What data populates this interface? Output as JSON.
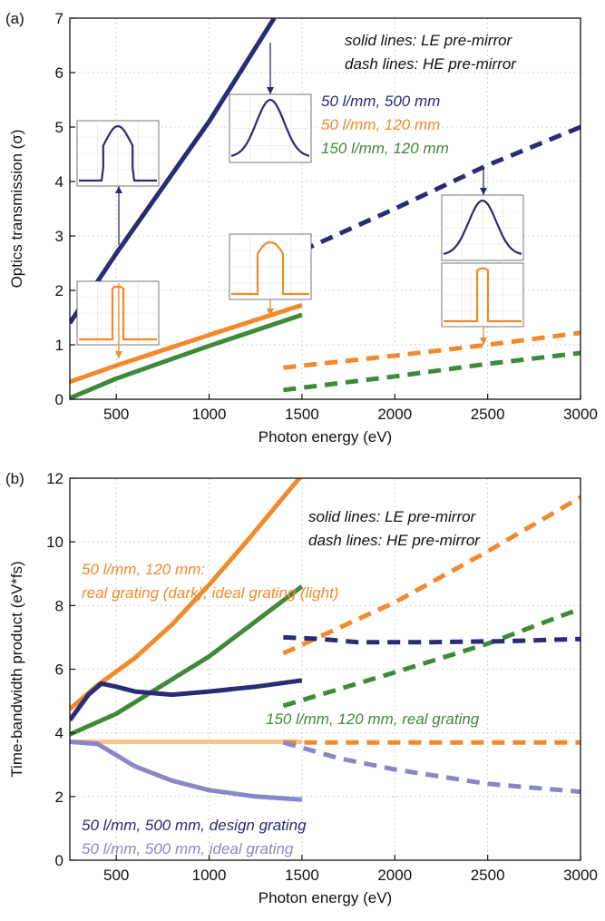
{
  "chart_data": [
    {
      "panel": "(a)",
      "type": "line",
      "xlabel": "Photon energy (eV)",
      "ylabel": "Optics transmission (σ)",
      "xlim": [
        250,
        3000
      ],
      "ylim": [
        0,
        7
      ],
      "xticks": [
        500,
        1000,
        1500,
        2000,
        2500,
        3000
      ],
      "yticks": [
        0,
        1,
        2,
        3,
        4,
        5,
        6,
        7
      ],
      "grid": true,
      "annotations": {
        "style_line1": "solid lines: LE pre-mirror",
        "style_line2": "dash lines: HE pre-mirror",
        "label_dark": "50 l/mm, 500 mm",
        "label_orange": "50 l/mm, 120 mm",
        "label_green": "150 l/mm, 120 mm"
      },
      "colors": {
        "dark": "#2b2a75",
        "orange": "#f08a2c",
        "green": "#3f8a3a"
      },
      "series": [
        {
          "style": "solid",
          "color": "dark",
          "points": [
            [
              250,
              1.4
            ],
            [
              500,
              2.68
            ],
            [
              1000,
              5.1
            ],
            [
              1350,
              7.0
            ]
          ]
        },
        {
          "style": "dashed",
          "color": "dark",
          "points": [
            [
              1500,
              2.73
            ],
            [
              2000,
              3.5
            ],
            [
              2500,
              4.3
            ],
            [
              3000,
              5.0
            ]
          ]
        },
        {
          "style": "solid",
          "color": "orange",
          "points": [
            [
              250,
              0.32
            ],
            [
              500,
              0.62
            ],
            [
              1000,
              1.18
            ],
            [
              1500,
              1.73
            ]
          ]
        },
        {
          "style": "dashed",
          "color": "orange",
          "points": [
            [
              1400,
              0.58
            ],
            [
              2000,
              0.8
            ],
            [
              2500,
              1.0
            ],
            [
              3000,
              1.22
            ]
          ]
        },
        {
          "style": "solid",
          "color": "green",
          "points": [
            [
              250,
              0.02
            ],
            [
              500,
              0.38
            ],
            [
              1000,
              0.98
            ],
            [
              1500,
              1.55
            ]
          ]
        },
        {
          "style": "dashed",
          "color": "green",
          "points": [
            [
              1400,
              0.17
            ],
            [
              2000,
              0.42
            ],
            [
              2500,
              0.65
            ],
            [
              3000,
              0.85
            ]
          ]
        }
      ],
      "insets": [
        {
          "shape": "flat-top",
          "color": "dark",
          "frame": [
            85,
            133,
            90,
            72
          ],
          "arrow": [
            131,
            270,
            131,
            205
          ]
        },
        {
          "shape": "narrow-rect",
          "color": "orange",
          "frame": [
            85,
            310,
            90,
            70
          ],
          "arrow": [
            131,
            312,
            131,
            395
          ]
        },
        {
          "shape": "gaussian",
          "color": "dark",
          "frame": [
            253,
            104,
            90,
            75
          ],
          "arrow": [
            298,
            47,
            298,
            104
          ]
        },
        {
          "shape": "rect-peak",
          "color": "orange",
          "frame": [
            253,
            258,
            90,
            72
          ],
          "arrow": [
            298,
            330,
            298,
            348
          ]
        },
        {
          "shape": "gaussian",
          "color": "dark",
          "frame": [
            487,
            215,
            90,
            72
          ],
          "arrow": [
            533,
            185,
            533,
            215
          ]
        },
        {
          "shape": "narrow-rect",
          "color": "orange",
          "frame": [
            487,
            290,
            90,
            70
          ],
          "arrow": [
            533,
            360,
            533,
            380
          ]
        }
      ]
    },
    {
      "panel": "(b)",
      "type": "line",
      "xlabel": "Photon energy (eV)",
      "ylabel": "Time-bandwidth product (eV*fs)",
      "xlim": [
        250,
        3000
      ],
      "ylim": [
        0,
        12
      ],
      "xticks": [
        500,
        1000,
        1500,
        2000,
        2500,
        3000
      ],
      "yticks": [
        0,
        2,
        4,
        6,
        8,
        10,
        12
      ],
      "grid": true,
      "annotations": {
        "style_line1": "solid lines: LE pre-mirror",
        "style_line2": "dash lines: HE pre-mirror",
        "orange_line1": "50 l/mm, 120 mm:",
        "orange_line2": "real grating (dark), ideal grating (light)",
        "green_label": "150 l/mm, 120 mm, real grating",
        "dark_label": "50 l/mm, 500 mm, design grating",
        "light_label": "50 l/mm, 500 mm, ideal grating"
      },
      "colors": {
        "dark": "#2b2a75",
        "orange": "#f08a2c",
        "lightorange": "#f8c48c",
        "green": "#3f8a3a",
        "lightpurple": "#8a87c8"
      },
      "series": [
        {
          "style": "solid",
          "color": "orange",
          "points": [
            [
              250,
              4.75
            ],
            [
              400,
              5.5
            ],
            [
              600,
              6.35
            ],
            [
              800,
              7.4
            ],
            [
              1000,
              8.65
            ],
            [
              1200,
              10.0
            ],
            [
              1400,
              11.4
            ],
            [
              1500,
              12.1
            ]
          ]
        },
        {
          "style": "dashed",
          "color": "orange",
          "points": [
            [
              1400,
              6.5
            ],
            [
              2000,
              8.1
            ],
            [
              2500,
              9.7
            ],
            [
              3000,
              11.4
            ]
          ]
        },
        {
          "style": "solid",
          "color": "green",
          "points": [
            [
              250,
              3.95
            ],
            [
              500,
              4.6
            ],
            [
              750,
              5.5
            ],
            [
              1000,
              6.4
            ],
            [
              1250,
              7.5
            ],
            [
              1500,
              8.6
            ]
          ]
        },
        {
          "style": "dashed",
          "color": "green",
          "points": [
            [
              1400,
              4.85
            ],
            [
              2000,
              5.9
            ],
            [
              2500,
              6.8
            ],
            [
              3000,
              7.9
            ]
          ]
        },
        {
          "style": "solid",
          "color": "dark",
          "points": [
            [
              250,
              4.4
            ],
            [
              350,
              5.2
            ],
            [
              420,
              5.55
            ],
            [
              500,
              5.45
            ],
            [
              600,
              5.3
            ],
            [
              800,
              5.2
            ],
            [
              1000,
              5.3
            ],
            [
              1250,
              5.45
            ],
            [
              1500,
              5.65
            ]
          ]
        },
        {
          "style": "dashed",
          "color": "dark",
          "points": [
            [
              1400,
              7.0
            ],
            [
              1600,
              6.95
            ],
            [
              1800,
              6.85
            ],
            [
              2200,
              6.85
            ],
            [
              2600,
              6.88
            ],
            [
              3000,
              6.95
            ]
          ]
        },
        {
          "style": "solid",
          "color": "lightorange",
          "points": [
            [
              250,
              3.72
            ],
            [
              1000,
              3.72
            ],
            [
              1500,
              3.72
            ]
          ]
        },
        {
          "style": "dashed",
          "color": "orange",
          "points": [
            [
              1400,
              3.7
            ],
            [
              2200,
              3.7
            ],
            [
              3000,
              3.7
            ]
          ]
        },
        {
          "style": "solid",
          "color": "lightpurple",
          "points": [
            [
              250,
              3.72
            ],
            [
              400,
              3.65
            ],
            [
              500,
              3.3
            ],
            [
              600,
              2.95
            ],
            [
              800,
              2.5
            ],
            [
              1000,
              2.2
            ],
            [
              1250,
              2.0
            ],
            [
              1500,
              1.9
            ]
          ]
        },
        {
          "style": "dashed",
          "color": "lightpurple",
          "points": [
            [
              1400,
              3.7
            ],
            [
              1700,
              3.2
            ],
            [
              2000,
              2.85
            ],
            [
              2500,
              2.4
            ],
            [
              3000,
              2.15
            ]
          ]
        }
      ]
    }
  ]
}
